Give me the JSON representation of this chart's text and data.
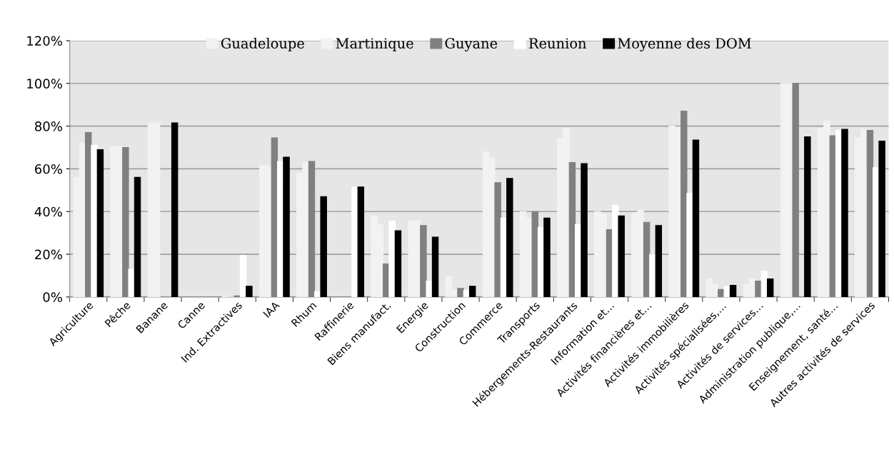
{
  "chart_data": {
    "type": "bar",
    "categories": [
      "Agriculture",
      "Pêche",
      "Banane",
      "Canne",
      "Ind. Extractives",
      "IAA",
      "Rhum",
      "Raffinerie",
      "Biens manufact.",
      "Energie",
      "Construction",
      "Commerce",
      "Transports",
      "Hébergements-Restaurants",
      "Information et…",
      "Activités financières et…",
      "Activités immobilières",
      "Activités spécialisées,…",
      "Activités de services…",
      "Administration publique,…",
      "Enseignement, santé…",
      "Autres activités de services"
    ],
    "series": [
      {
        "name": "Guadeloupe",
        "color": "#f2f2f2",
        "values": [
          56,
          70.5,
          81.5,
          null,
          0.5,
          61.5,
          58,
          null,
          38,
          35.5,
          9.5,
          68,
          40,
          74,
          40,
          39.5,
          80,
          8.5,
          6,
          100,
          79,
          74.5
        ]
      },
      {
        "name": "Martinique",
        "color": "#f2f2f2",
        "values": [
          72,
          70.5,
          81.5,
          null,
          0,
          61.5,
          63,
          null,
          34,
          36,
          3.5,
          65,
          37,
          79,
          39,
          40.5,
          79.5,
          6,
          8.5,
          100,
          82.5,
          78.5
        ]
      },
      {
        "name": "Guyane",
        "color": "#808080",
        "values": [
          77,
          70,
          null,
          null,
          0.5,
          74.5,
          63.5,
          null,
          15.5,
          33.5,
          4,
          53.5,
          40,
          63,
          31.5,
          35,
          87,
          3.5,
          7.5,
          100,
          75.5,
          78
        ]
      },
      {
        "name": "Reunion",
        "color": "#ffffff",
        "values": [
          71,
          13,
          null,
          null,
          19.5,
          63.5,
          2.5,
          51.5,
          35.5,
          7.5,
          3,
          37,
          32.5,
          34,
          43,
          20,
          48.5,
          5,
          12,
          null,
          78,
          60.5
        ]
      },
      {
        "name": "Moyenne des DOM",
        "color": "#000000",
        "values": [
          69,
          56,
          81.5,
          null,
          5,
          65.5,
          47,
          51.5,
          31,
          28,
          5,
          55.5,
          37,
          62.5,
          38,
          33.5,
          73.5,
          5.5,
          8.5,
          75,
          78.5,
          73
        ]
      }
    ],
    "ylim": [
      0,
      120
    ],
    "yticks": [
      {
        "value": 0,
        "label": "0%"
      },
      {
        "value": 20,
        "label": "20%"
      },
      {
        "value": 40,
        "label": "40%"
      },
      {
        "value": 60,
        "label": "60%"
      },
      {
        "value": 80,
        "label": "80%"
      },
      {
        "value": 100,
        "label": "100%"
      },
      {
        "value": 120,
        "label": "120%"
      }
    ],
    "grid": "y",
    "legend": "top"
  }
}
